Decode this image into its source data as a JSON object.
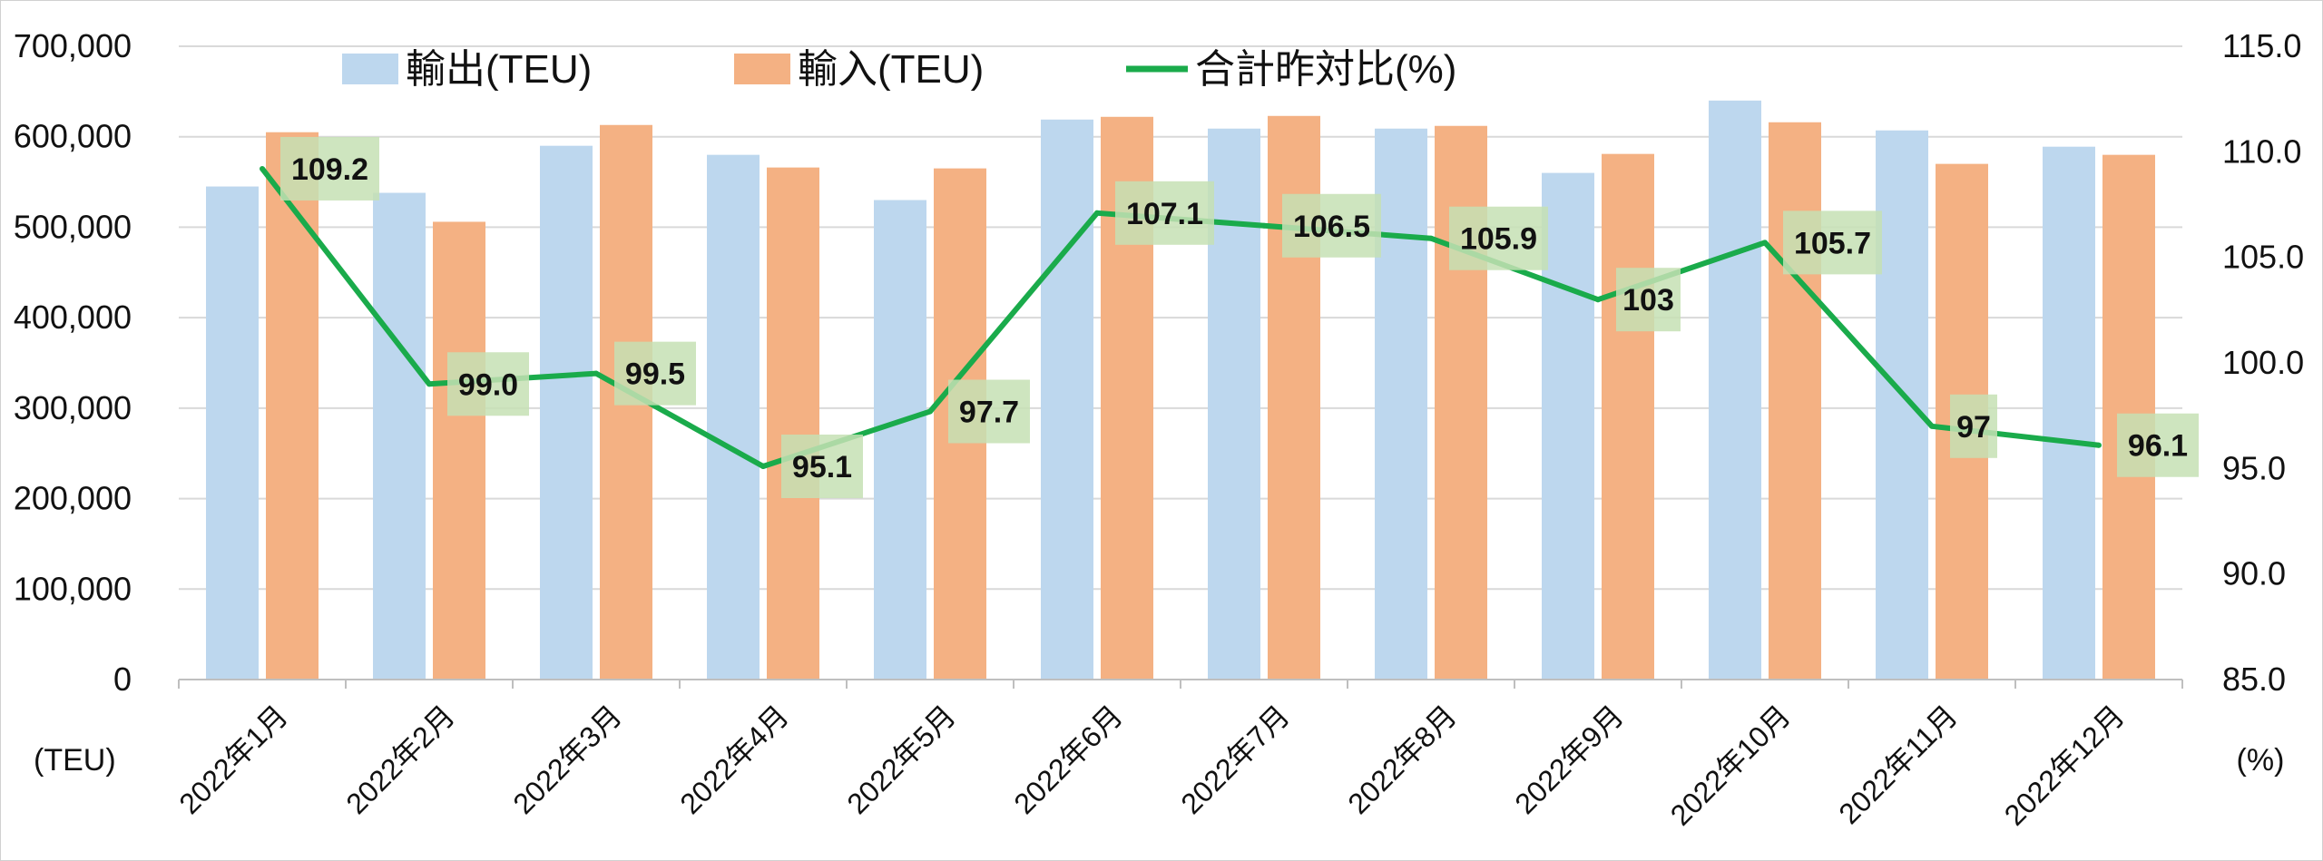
{
  "chart_data": {
    "type": "bar",
    "categories": [
      "2022年1月",
      "2022年2月",
      "2022年3月",
      "2022年4月",
      "2022年5月",
      "2022年6月",
      "2022年7月",
      "2022年8月",
      "2022年9月",
      "2022年10月",
      "2022年11月",
      "2022年12月"
    ],
    "series": [
      {
        "name": "輸出(TEU)",
        "type": "bar",
        "axis": "left",
        "color": "#bdd7ee",
        "values": [
          545000,
          538000,
          590000,
          580000,
          530000,
          619000,
          609000,
          609000,
          560000,
          640000,
          607000,
          589000
        ]
      },
      {
        "name": "輸入(TEU)",
        "type": "bar",
        "axis": "left",
        "color": "#f4b183",
        "values": [
          605000,
          506000,
          613000,
          566000,
          565000,
          622000,
          623000,
          612000,
          581000,
          616000,
          570000,
          580000
        ]
      },
      {
        "name": "合計昨対比(%)",
        "type": "line",
        "axis": "right",
        "color": "#1aab4b",
        "values": [
          109.2,
          99.0,
          99.5,
          95.1,
          97.7,
          107.1,
          106.5,
          105.9,
          103,
          105.7,
          97,
          96.1
        ],
        "labels": [
          "109.2",
          "99.0",
          "99.5",
          "95.1",
          "97.7",
          "107.1",
          "106.5",
          "105.9",
          "103",
          "105.7",
          "97",
          "96.1"
        ]
      }
    ],
    "y_left": {
      "ylim": [
        0,
        700000
      ],
      "ticks": [
        "0",
        "100,000",
        "200,000",
        "300,000",
        "400,000",
        "500,000",
        "600,000",
        "700,000"
      ],
      "unit": "(TEU)"
    },
    "y_right": {
      "ylim": [
        85,
        115
      ],
      "ticks": [
        "85.0",
        "90.0",
        "95.0",
        "100.0",
        "105.0",
        "110.0",
        "115.0"
      ],
      "unit": "(%)"
    },
    "grid": true,
    "legend": "top",
    "data_label_bg": "#c5e0b4"
  }
}
